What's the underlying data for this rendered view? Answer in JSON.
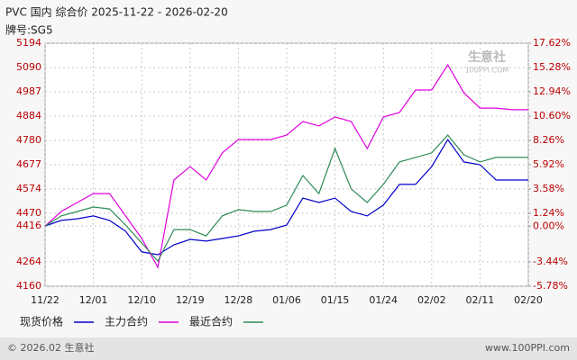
{
  "chart_data": {
    "type": "line",
    "title": "PVC 国内 综合价 2025-11-22 - 2026-02-20",
    "subtitle": "牌号:SG5",
    "categories": [
      "11/22",
      null,
      null,
      "12/01",
      null,
      null,
      "12/10",
      null,
      null,
      "12/19",
      null,
      null,
      "12/28",
      null,
      null,
      "01/06",
      null,
      null,
      "01/15",
      null,
      null,
      "01/24",
      null,
      null,
      "02/02",
      null,
      null,
      "02/11",
      null,
      null,
      "02/20"
    ],
    "series": [
      {
        "name": "现货价格",
        "color": "#0000cc",
        "values": [
          4416,
          4440,
          4447,
          4459,
          4440,
          4394,
          4306,
          4294,
          4336,
          4359,
          4352,
          4363,
          4374,
          4394,
          4401,
          4420,
          4535,
          4516,
          4535,
          4478,
          4459,
          4505,
          4593,
          4593,
          4669,
          4784,
          4689,
          4677,
          4612,
          4612,
          4612
        ]
      },
      {
        "name": "主力合约",
        "color": "#e000e0",
        "values": [
          4416,
          4478,
          4516,
          4554,
          4554,
          4459,
          4363,
          4240,
          4612,
          4669,
          4612,
          4727,
          4784,
          4784,
          4784,
          4803,
          4861,
          4842,
          4880,
          4861,
          4746,
          4880,
          4899,
          4995,
          4995,
          5102,
          4983,
          4918,
          4918,
          4911,
          4911
        ]
      },
      {
        "name": "最近合约",
        "color": "#2e8b57",
        "values": [
          4416,
          4459,
          4478,
          4497,
          4489,
          4420,
          4344,
          4267,
          4401,
          4401,
          4374,
          4459,
          4486,
          4478,
          4478,
          4505,
          4631,
          4554,
          4746,
          4574,
          4516,
          4593,
          4689,
          4708,
          4727,
          4803,
          4719,
          4689,
          4708,
          4708,
          4708
        ]
      }
    ],
    "ylim": [
      4160,
      5194
    ],
    "yticks": [
      4160,
      4264,
      4416,
      4470,
      4574,
      4677,
      4780,
      4884,
      4987,
      5090,
      5194
    ],
    "y2lim": [
      -5.78,
      17.62
    ],
    "y2ticks": [
      {
        "value": -5.78,
        "label": "-5.78%"
      },
      {
        "value": -3.44,
        "label": "-3.44%"
      },
      {
        "value": 0,
        "label": "0.00%"
      },
      {
        "value": 1.24,
        "label": "1.24%"
      },
      {
        "value": 3.58,
        "label": "3.58%"
      },
      {
        "value": 5.92,
        "label": "5.92%"
      },
      {
        "value": 8.26,
        "label": "8.26%"
      },
      {
        "value": 10.6,
        "label": "10.60%"
      },
      {
        "value": 12.94,
        "label": "12.94%"
      },
      {
        "value": 15.28,
        "label": "15.28%"
      },
      {
        "value": 17.62,
        "label": "17.62%"
      }
    ],
    "grid": true,
    "legend": "bottom",
    "watermark": {
      "name": "生意社",
      "site": "100PPI.COM"
    },
    "footer": {
      "copyright": "© 2026.02 生意社",
      "site": "www.100PPI.com"
    }
  }
}
